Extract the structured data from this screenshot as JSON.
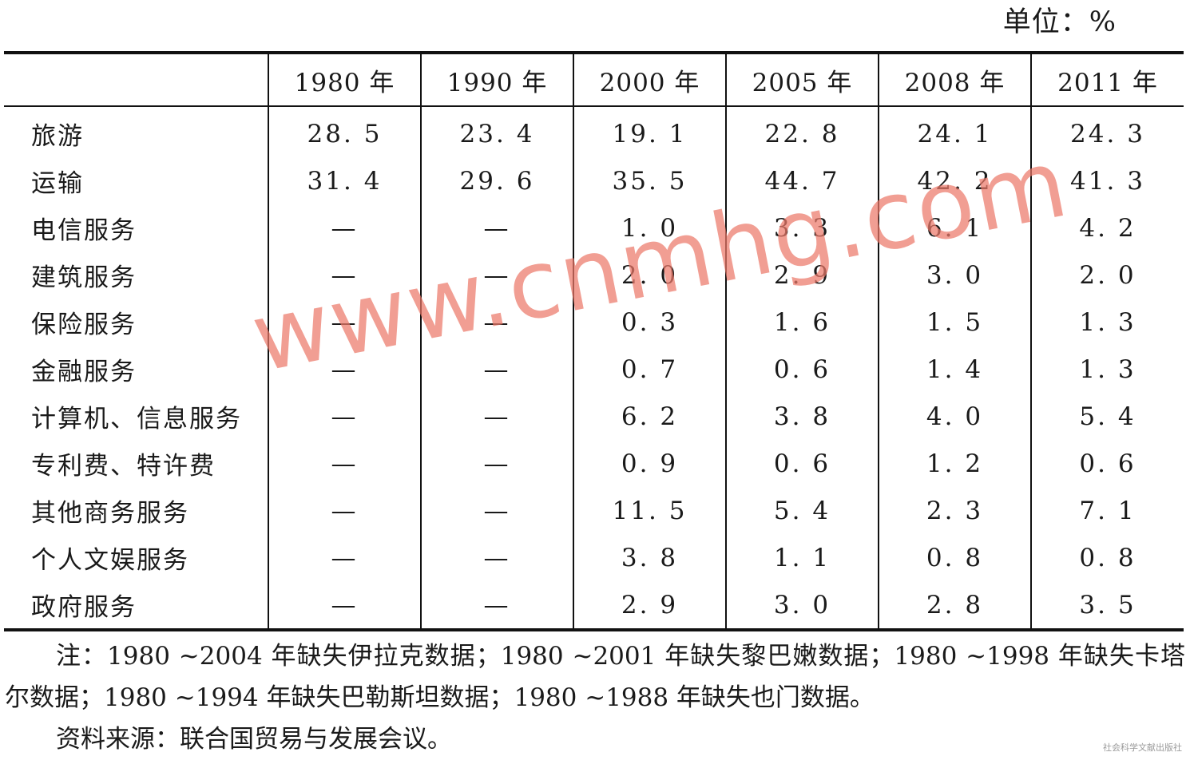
{
  "unit_label": "单位：%",
  "table": {
    "columns": [
      "1980 年",
      "1990 年",
      "2000 年",
      "2005 年",
      "2008 年",
      "2011 年"
    ],
    "rows": [
      {
        "label": "旅游",
        "values": [
          "28. 5",
          "23. 4",
          "19. 1",
          "22. 8",
          "24. 1",
          "24. 3"
        ]
      },
      {
        "label": "运输",
        "values": [
          "31. 4",
          "29. 6",
          "35. 5",
          "44. 7",
          "42. 2",
          "41. 3"
        ]
      },
      {
        "label": "电信服务",
        "values": [
          "—",
          "—",
          "1. 0",
          "3. 3",
          "6. 1",
          "4. 2"
        ]
      },
      {
        "label": "建筑服务",
        "values": [
          "—",
          "—",
          "2. 0",
          "2. 9",
          "3. 0",
          "2. 0"
        ]
      },
      {
        "label": "保险服务",
        "values": [
          "—",
          "—",
          "0. 3",
          "1. 6",
          "1. 5",
          "1. 3"
        ]
      },
      {
        "label": "金融服务",
        "values": [
          "—",
          "—",
          "0. 7",
          "0. 6",
          "1. 4",
          "1. 3"
        ]
      },
      {
        "label": "计算机、信息服务",
        "values": [
          "—",
          "—",
          "6. 2",
          "3. 8",
          "4. 0",
          "5. 4"
        ]
      },
      {
        "label": "专利费、特许费",
        "values": [
          "—",
          "—",
          "0. 9",
          "0. 6",
          "1. 2",
          "0. 6"
        ]
      },
      {
        "label": "其他商务服务",
        "values": [
          "—",
          "—",
          "11. 5",
          "5. 4",
          "2. 3",
          "7. 1"
        ]
      },
      {
        "label": "个人文娱服务",
        "values": [
          "—",
          "—",
          "3. 8",
          "1. 1",
          "0. 8",
          "0. 8"
        ]
      },
      {
        "label": "政府服务",
        "values": [
          "—",
          "—",
          "2. 9",
          "3. 0",
          "2. 8",
          "3. 5"
        ]
      }
    ]
  },
  "note": "注：1980 ~2004 年缺失伊拉克数据；1980 ~2001 年缺失黎巴嫩数据；1980 ~1998 年缺失卡塔尔数据；1980 ~1994 年缺失巴勒斯坦数据；1980 ~1988 年缺失也门数据。",
  "source": "资料来源：联合国贸易与发展会议。",
  "watermark": "www.cnmhg.com",
  "publisher_mark": "社会科学文献出版社"
}
